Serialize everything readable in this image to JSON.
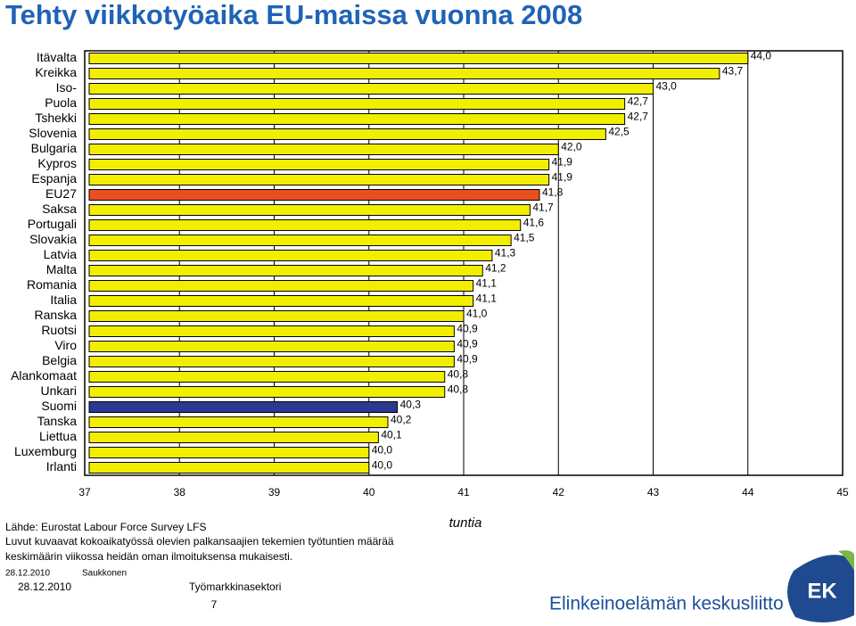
{
  "chart_data": {
    "type": "barh",
    "title": "Tehty viikkotyöaika EU-maissa vuonna 2008",
    "categories": [
      "Itävalta",
      "Kreikka",
      "Iso-",
      "Puola",
      "Tshekki",
      "Slovenia",
      "Bulgaria",
      "Kypros",
      "Espanja",
      "EU27",
      "Saksa",
      "Portugali",
      "Slovakia",
      "Latvia",
      "Malta",
      "Romania",
      "Italia",
      "Ranska",
      "Ruotsi",
      "Viro",
      "Belgia",
      "Alankomaat",
      "Unkari",
      "Suomi",
      "Tanska",
      "Liettua",
      "Luxemburg",
      "Irlanti"
    ],
    "values": [
      44.0,
      43.7,
      43.0,
      42.7,
      42.7,
      42.5,
      42.0,
      41.9,
      41.9,
      41.8,
      41.7,
      41.6,
      41.5,
      41.3,
      41.2,
      41.1,
      41.1,
      41.0,
      40.9,
      40.9,
      40.9,
      40.8,
      40.8,
      40.3,
      40.2,
      40.1,
      40.0,
      40.0
    ],
    "value_labels": [
      "44,0",
      "43,7",
      "43,0",
      "42,7",
      "42,7",
      "42,5",
      "42,0",
      "41,9",
      "41,9",
      "41,8",
      "41,7",
      "41,6",
      "41,5",
      "41,3",
      "41,2",
      "41,1",
      "41,1",
      "41,0",
      "40,9",
      "40,9",
      "40,9",
      "40,8",
      "40,8",
      "40,3",
      "40,2",
      "40,1",
      "40,0",
      "40,0"
    ],
    "colors": [
      "#f2ee00",
      "#f2ee00",
      "#f2ee00",
      "#f2ee00",
      "#f2ee00",
      "#f2ee00",
      "#f2ee00",
      "#f2ee00",
      "#f2ee00",
      "#e8501e",
      "#f2ee00",
      "#f2ee00",
      "#f2ee00",
      "#f2ee00",
      "#f2ee00",
      "#f2ee00",
      "#f2ee00",
      "#f2ee00",
      "#f2ee00",
      "#f2ee00",
      "#f2ee00",
      "#f2ee00",
      "#f2ee00",
      "#2b3990",
      "#f2ee00",
      "#f2ee00",
      "#f2ee00",
      "#f2ee00"
    ],
    "xlabel": "tuntia",
    "xlim": [
      37,
      45
    ],
    "xticks": [
      37,
      38,
      39,
      40,
      41,
      42,
      43,
      44,
      45
    ],
    "grid": true,
    "notes": [
      "Lähde: Eurostat Labour Force Survey LFS",
      "Luvut kuvaavat kokoaikatyössä olevien palkansaajien tekemien työtuntien määrää",
      "keskimäärin viikossa heidän oman ilmoituksensa mukaisesti."
    ]
  },
  "footer": {
    "date_small": "28.12.2010",
    "author": "Saukkonen",
    "date": "28.12.2010",
    "department": "Työmarkkinasektori",
    "page": "7",
    "organization": "Elinkeinoelämän keskusliitto",
    "logo": "EK"
  }
}
